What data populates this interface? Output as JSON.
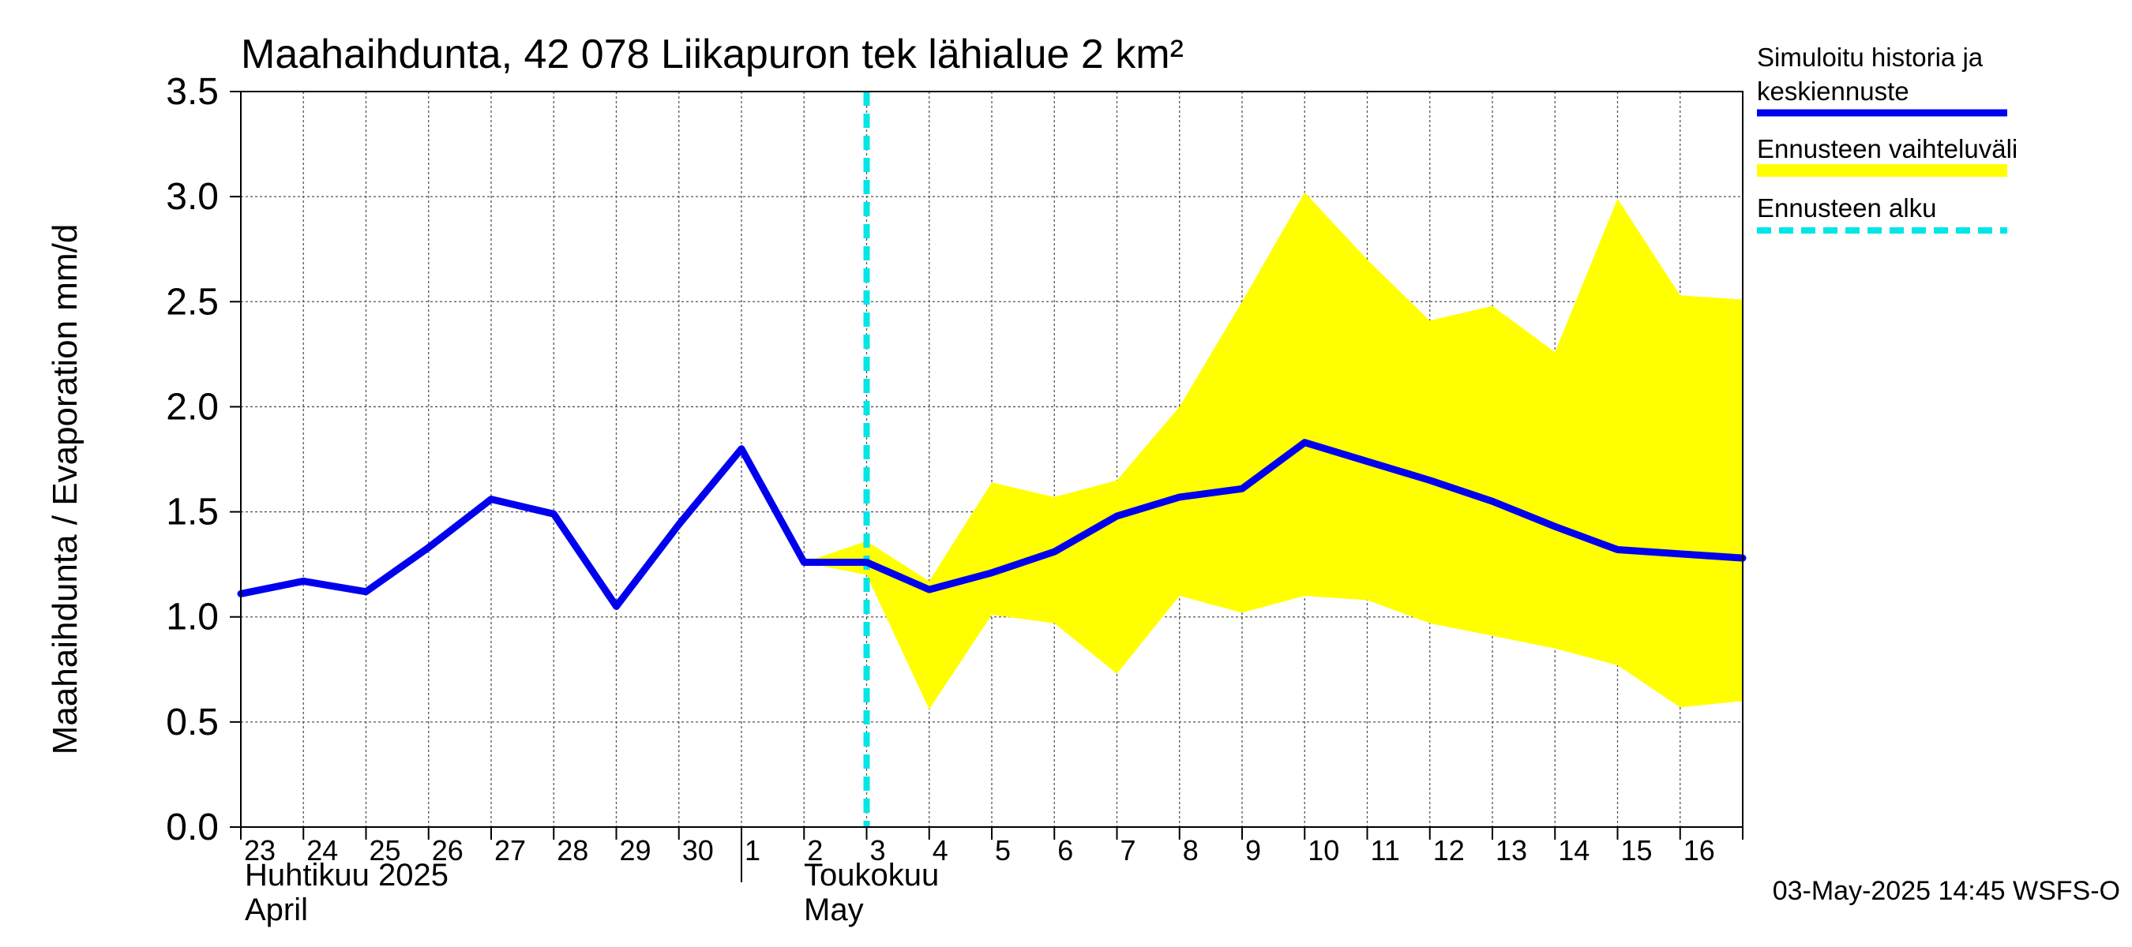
{
  "chart_data": {
    "type": "line",
    "title": "Maahaihdunta, 42 078 Liikapuron tek lähialue 2 km²",
    "ylabel": "Maahaihdunta / Evaporation   mm/d",
    "ylim": [
      0,
      3.5
    ],
    "yticks": [
      "0.0",
      "0.5",
      "1.0",
      "1.5",
      "2.0",
      "2.5",
      "3.0",
      "3.5"
    ],
    "x_days": [
      "23",
      "24",
      "25",
      "26",
      "27",
      "28",
      "29",
      "30",
      "1",
      "2",
      "3",
      "4",
      "5",
      "6",
      "7",
      "8",
      "9",
      "10",
      "11",
      "12",
      "13",
      "14",
      "15",
      "16"
    ],
    "month_labels": {
      "april_fi": "Huhtikuu  2025",
      "april_en": "April",
      "may_fi": "Toukokuu",
      "may_en": "May"
    },
    "forecast_start_day_index": 10.0,
    "series": [
      {
        "name": "Simuloitu historia ja keskiennuste",
        "color": "#0000ee",
        "x": [
          0,
          1,
          2,
          3,
          4,
          5,
          6,
          7,
          8,
          9,
          10,
          11,
          12,
          13,
          14,
          15,
          16,
          17,
          18,
          19,
          20,
          21,
          22,
          23,
          24
        ],
        "values": [
          1.11,
          1.17,
          1.12,
          1.33,
          1.56,
          1.49,
          1.05,
          1.44,
          1.8,
          1.26,
          1.26,
          1.13,
          1.21,
          1.31,
          1.48,
          1.57,
          1.61,
          1.83,
          1.74,
          1.65,
          1.55,
          1.43,
          1.32,
          1.3,
          1.28
        ]
      },
      {
        "name": "Ennusteen vaihteluväli",
        "color": "#ffff00",
        "x": [
          9,
          10,
          11,
          12,
          13,
          14,
          15,
          16,
          17,
          18,
          19,
          20,
          21,
          22,
          23,
          24
        ],
        "upper": [
          1.26,
          1.36,
          1.17,
          1.64,
          1.57,
          1.65,
          2.0,
          2.5,
          3.02,
          2.7,
          2.41,
          2.48,
          2.26,
          2.99,
          2.53,
          2.51
        ],
        "lower": [
          1.26,
          1.2,
          0.56,
          1.01,
          0.97,
          0.73,
          1.1,
          1.02,
          1.1,
          1.08,
          0.97,
          0.91,
          0.85,
          0.77,
          0.57,
          0.6
        ]
      },
      {
        "name": "Ennusteen alku",
        "color": "#00e5e5"
      }
    ],
    "legend": {
      "position": "right",
      "entries": [
        "Simuloitu historia ja",
        "keskiennuste",
        "Ennusteen vaihteluväli",
        "Ennusteen alku"
      ]
    },
    "footer": "03-May-2025 14:45 WSFS-O"
  }
}
